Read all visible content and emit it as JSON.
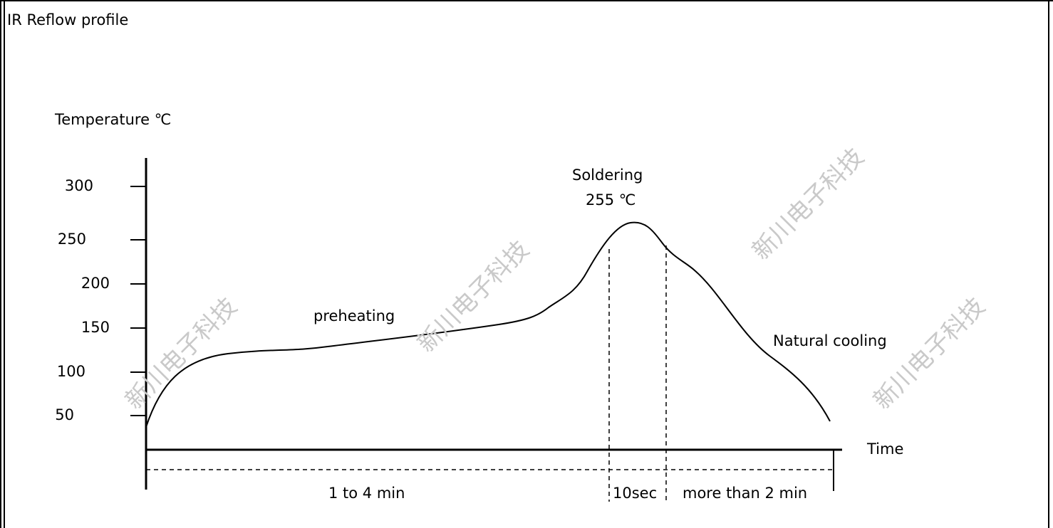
{
  "title": "IR Reflow profile",
  "watermark": "新川电子科技",
  "chart_data": {
    "type": "line",
    "ylabel": "Temperature ℃",
    "xlabel": "Time",
    "y_ticks": [
      "300",
      "250",
      "200",
      "150",
      "100",
      "50"
    ],
    "annotations": {
      "preheating": "preheating",
      "soldering_line1": "Soldering",
      "soldering_line2": "255 ℃",
      "cooling": "Natural cooling"
    },
    "durations": {
      "preheat": "1 to 4 min",
      "soldering": "10sec",
      "cooling": "more than 2 min"
    },
    "peak_temperature_c": 255
  }
}
